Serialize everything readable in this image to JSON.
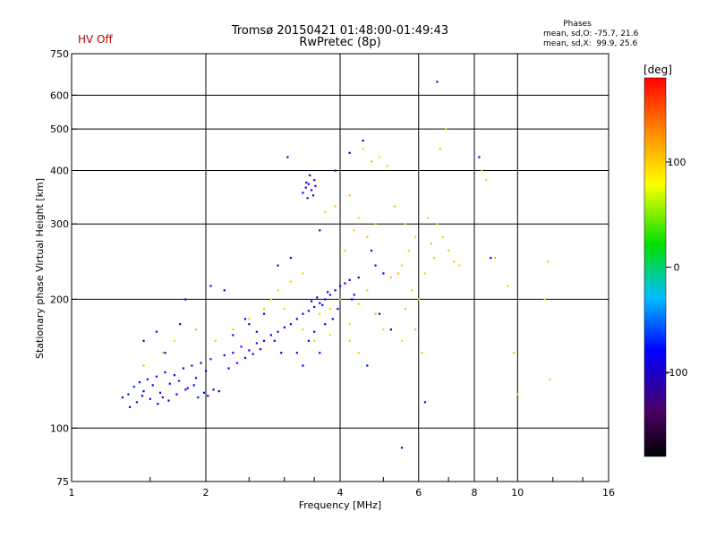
{
  "status": {
    "hv_label": "HV Off",
    "hv_color": "#c00000"
  },
  "header": {
    "title_line1": "Tromsø 20150421 01:48:00-01:49:43",
    "title_line2": "RwPretec (8p)",
    "phase_title": "Phases",
    "phase_o": "mean, sd,O: -75.7, 21.6",
    "phase_x": "mean, sd,X:  99.9, 25.6"
  },
  "chart_data": {
    "type": "scatter",
    "title": "Tromsø 20150421 01:48:00-01:49:43",
    "subtitle": "RwPretec (8p)",
    "xlabel": "Frequency [MHz]",
    "ylabel": "Stationary phase Virtual Height [km]",
    "x_scale": "log",
    "y_scale": "log",
    "xlim": [
      1,
      16
    ],
    "ylim": [
      75,
      750
    ],
    "x_ticks": [
      1,
      2,
      4,
      8,
      16
    ],
    "x_tick_labels": [
      "1",
      "2",
      "4",
      "8",
      "16"
    ],
    "x_minor_labeled": [
      6,
      10
    ],
    "x_minor_labels": [
      "6",
      "10"
    ],
    "x_grid": [
      2,
      4,
      6,
      8,
      10
    ],
    "y_ticks": [
      75,
      100,
      200,
      300,
      400,
      500,
      600,
      750
    ],
    "y_tick_labels": [
      "75",
      "100",
      "200",
      "300",
      "400",
      "500",
      "600",
      "750"
    ],
    "y_grid": [
      100,
      200,
      300,
      400,
      500,
      600
    ],
    "grid": true,
    "colorbar": {
      "label": "[deg]",
      "range": [
        -180,
        180
      ],
      "ticks": [
        100,
        0,
        -100
      ],
      "tick_labels": [
        "100",
        "0",
        "-100"
      ],
      "colormap": "rainbow (black-purple-blue-cyan-green-yellow-orange-red)"
    },
    "series": [
      {
        "name": "O",
        "points": [
          [
            1.3,
            118,
            -80
          ],
          [
            1.34,
            120,
            -85
          ],
          [
            1.38,
            125,
            -70
          ],
          [
            1.42,
            128,
            -90
          ],
          [
            1.45,
            122,
            -78
          ],
          [
            1.48,
            130,
            -75
          ],
          [
            1.52,
            126,
            -82
          ],
          [
            1.55,
            132,
            -72
          ],
          [
            1.58,
            121,
            -88
          ],
          [
            1.62,
            135,
            -80
          ],
          [
            1.66,
            127,
            -76
          ],
          [
            1.7,
            133,
            -84
          ],
          [
            1.74,
            129,
            -70
          ],
          [
            1.78,
            138,
            -79
          ],
          [
            1.82,
            124,
            -86
          ],
          [
            1.86,
            140,
            -74
          ],
          [
            1.9,
            131,
            -81
          ],
          [
            1.95,
            142,
            -77
          ],
          [
            2.0,
            136,
            -83
          ],
          [
            2.05,
            145,
            -71
          ],
          [
            1.35,
            112,
            -79
          ],
          [
            1.4,
            115,
            -73
          ],
          [
            1.44,
            119,
            -87
          ],
          [
            1.5,
            117,
            -76
          ],
          [
            1.56,
            114,
            -80
          ],
          [
            1.6,
            118,
            -74
          ],
          [
            1.65,
            116,
            -82
          ],
          [
            1.72,
            120,
            -78
          ],
          [
            1.8,
            123,
            -75
          ],
          [
            1.88,
            126,
            -86
          ],
          [
            1.92,
            118,
            -72
          ],
          [
            1.98,
            121,
            -80
          ],
          [
            2.02,
            119,
            -77
          ],
          [
            2.08,
            123,
            -84
          ],
          [
            2.14,
            122,
            -79
          ],
          [
            2.2,
            148,
            -78
          ],
          [
            2.3,
            150,
            -82
          ],
          [
            2.4,
            155,
            -75
          ],
          [
            2.5,
            152,
            -80
          ],
          [
            2.6,
            158,
            -73
          ],
          [
            2.7,
            160,
            -85
          ],
          [
            2.8,
            165,
            -79
          ],
          [
            2.9,
            168,
            -76
          ],
          [
            3.0,
            172,
            -81
          ],
          [
            3.1,
            175,
            -77
          ],
          [
            2.25,
            138,
            -83
          ],
          [
            2.35,
            142,
            -74
          ],
          [
            2.45,
            146,
            -80
          ],
          [
            2.55,
            149,
            -78
          ],
          [
            2.65,
            153,
            -86
          ],
          [
            3.2,
            180,
            -85
          ],
          [
            3.3,
            185,
            -80
          ],
          [
            3.4,
            188,
            -88
          ],
          [
            3.5,
            192,
            -90
          ],
          [
            3.6,
            196,
            -85
          ],
          [
            3.7,
            200,
            -92
          ],
          [
            3.8,
            205,
            -88
          ],
          [
            3.9,
            210,
            -95
          ],
          [
            4.0,
            215,
            -90
          ],
          [
            4.1,
            218,
            -93
          ],
          [
            4.2,
            222,
            -87
          ],
          [
            3.45,
            198,
            -94
          ],
          [
            3.55,
            202,
            -89
          ],
          [
            3.65,
            194,
            -91
          ],
          [
            3.75,
            208,
            -86
          ],
          [
            3.3,
            355,
            -92
          ],
          [
            3.35,
            365,
            -95
          ],
          [
            3.4,
            372,
            -90
          ],
          [
            3.45,
            360,
            -93
          ],
          [
            3.5,
            380,
            -88
          ],
          [
            3.38,
            345,
            -96
          ],
          [
            3.42,
            390,
            -91
          ],
          [
            3.48,
            350,
            -94
          ],
          [
            3.52,
            368,
            -89
          ],
          [
            3.36,
            375,
            -92
          ],
          [
            3.05,
            430,
            -90
          ],
          [
            4.5,
            470,
            -95
          ],
          [
            4.2,
            440,
            -88
          ],
          [
            3.9,
            400,
            -85
          ],
          [
            4.7,
            260,
            -92
          ],
          [
            4.8,
            240,
            -87
          ],
          [
            5.0,
            230,
            -90
          ],
          [
            4.4,
            225,
            -93
          ],
          [
            4.3,
            205,
            -86
          ],
          [
            3.6,
            290,
            -88
          ],
          [
            3.1,
            250,
            -85
          ],
          [
            2.9,
            240,
            -89
          ],
          [
            2.7,
            185,
            -90
          ],
          [
            2.5,
            175,
            -86
          ],
          [
            2.3,
            165,
            -83
          ],
          [
            2.2,
            210,
            -91
          ],
          [
            2.05,
            215,
            -88
          ],
          [
            1.8,
            200,
            -87
          ],
          [
            1.75,
            175,
            -92
          ],
          [
            1.55,
            168,
            -90
          ],
          [
            1.45,
            160,
            -85
          ],
          [
            1.62,
            150,
            -88
          ],
          [
            6.6,
            645,
            -95
          ],
          [
            6.2,
            115,
            -90
          ],
          [
            8.2,
            430,
            -93
          ],
          [
            8.7,
            250,
            -88
          ],
          [
            5.5,
            90,
            -92
          ],
          [
            4.6,
            140,
            -86
          ],
          [
            4.9,
            185,
            -89
          ],
          [
            5.2,
            170,
            -91
          ],
          [
            3.2,
            150,
            -87
          ],
          [
            3.4,
            160,
            -90
          ],
          [
            3.6,
            150,
            -85
          ],
          [
            3.3,
            140,
            -88
          ],
          [
            2.95,
            150,
            -93
          ],
          [
            2.85,
            160,
            -86
          ],
          [
            2.6,
            168,
            -89
          ],
          [
            2.45,
            180,
            -91
          ],
          [
            3.85,
            180,
            -87
          ],
          [
            4.25,
            200,
            -92
          ],
          [
            3.95,
            190,
            -88
          ],
          [
            3.7,
            175,
            -90
          ],
          [
            3.5,
            168,
            -86
          ]
        ]
      },
      {
        "name": "X",
        "points": [
          [
            3.6,
            185,
            105
          ],
          [
            3.8,
            190,
            98
          ],
          [
            4.0,
            200,
            110
          ],
          [
            4.2,
            175,
            95
          ],
          [
            4.4,
            195,
            102
          ],
          [
            4.6,
            210,
            100
          ],
          [
            4.8,
            185,
            108
          ],
          [
            5.0,
            170,
            96
          ],
          [
            5.2,
            225,
            104
          ],
          [
            5.5,
            240,
            99
          ],
          [
            5.6,
            190,
            110
          ],
          [
            5.8,
            210,
            97
          ],
          [
            6.0,
            200,
            103
          ],
          [
            6.2,
            230,
            100
          ],
          [
            6.5,
            250,
            106
          ],
          [
            6.8,
            280,
            98
          ],
          [
            7.0,
            260,
            104
          ],
          [
            7.2,
            245,
            101
          ],
          [
            6.6,
            300,
            95
          ],
          [
            6.4,
            270,
            107
          ],
          [
            5.9,
            280,
            100
          ],
          [
            5.7,
            260,
            96
          ],
          [
            5.4,
            230,
            105
          ],
          [
            4.5,
            450,
            100
          ],
          [
            4.7,
            420,
            110
          ],
          [
            4.9,
            430,
            95
          ],
          [
            5.1,
            410,
            104
          ],
          [
            6.7,
            450,
            102
          ],
          [
            6.9,
            500,
            99
          ],
          [
            8.3,
            400,
            108
          ],
          [
            4.1,
            260,
            97
          ],
          [
            4.3,
            290,
            103
          ],
          [
            4.6,
            280,
            110
          ],
          [
            3.9,
            330,
            100
          ],
          [
            3.7,
            320,
            96
          ],
          [
            4.2,
            350,
            105
          ],
          [
            4.4,
            310,
            99
          ],
          [
            4.8,
            300,
            102
          ],
          [
            5.3,
            330,
            107
          ],
          [
            5.6,
            300,
            98
          ],
          [
            3.3,
            230,
            104
          ],
          [
            3.1,
            220,
            100
          ],
          [
            2.9,
            210,
            95
          ],
          [
            2.7,
            190,
            106
          ],
          [
            2.5,
            180,
            101
          ],
          [
            2.3,
            170,
            97
          ],
          [
            2.1,
            160,
            103
          ],
          [
            1.9,
            170,
            110
          ],
          [
            1.7,
            160,
            96
          ],
          [
            1.6,
            150,
            100
          ],
          [
            1.45,
            140,
            105
          ],
          [
            3.5,
            160,
            99
          ],
          [
            3.3,
            170,
            102
          ],
          [
            3.0,
            190,
            97
          ],
          [
            2.8,
            200,
            104
          ],
          [
            11.5,
            200,
            100
          ],
          [
            11.8,
            130,
            98
          ],
          [
            9.5,
            215,
            103
          ],
          [
            10.0,
            120,
            101
          ],
          [
            9.8,
            150,
            106
          ],
          [
            8.5,
            380,
            97
          ],
          [
            8.9,
            250,
            102
          ],
          [
            11.7,
            245,
            99
          ],
          [
            5.9,
            170,
            110
          ],
          [
            5.5,
            160,
            95
          ],
          [
            6.1,
            150,
            104
          ],
          [
            4.4,
            150,
            100
          ],
          [
            4.2,
            160,
            108
          ],
          [
            3.8,
            165,
            96
          ],
          [
            6.3,
            310,
            103
          ],
          [
            7.4,
            240,
            98
          ]
        ]
      }
    ]
  }
}
